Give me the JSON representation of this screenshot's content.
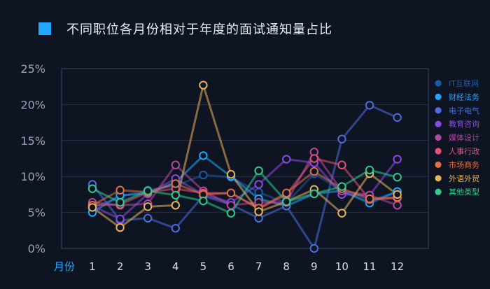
{
  "title": "不同职位各月份相对于年度的面试通知量占比",
  "colors": {
    "title_marker": "#1ea7ff",
    "background": "#0e1422",
    "grid": "#26304a",
    "axis": "#3a4560"
  },
  "chart_data": {
    "type": "line",
    "title": "不同职位各月份相对于年度的面试通知量占比",
    "xlabel": "月份",
    "ylabel": "",
    "categories": [
      "1",
      "2",
      "3",
      "4",
      "5",
      "6",
      "7",
      "8",
      "9",
      "10",
      "11",
      "12"
    ],
    "y_ticks": [
      "0%",
      "5%",
      "10%",
      "15%",
      "20%",
      "25%"
    ],
    "ylim": [
      0,
      25
    ],
    "grid": true,
    "legend_position": "right",
    "series": [
      {
        "name": "IT互联网",
        "color": "#1c5aa0",
        "values": [
          5.6,
          7.2,
          8.1,
          8.7,
          10.2,
          9.9,
          7.8,
          6.3,
          10.4,
          8.0,
          6.6,
          7.9
        ]
      },
      {
        "name": "财经法务",
        "color": "#1ea7ff",
        "values": [
          5.0,
          7.4,
          7.6,
          9.2,
          12.9,
          10.0,
          6.9,
          5.9,
          7.6,
          8.0,
          6.3,
          7.9
        ]
      },
      {
        "name": "电子电气",
        "color": "#4a6ee0",
        "values": [
          8.9,
          3.9,
          4.2,
          2.8,
          7.3,
          6.1,
          4.2,
          5.9,
          0.0,
          15.2,
          19.9,
          18.2
        ]
      },
      {
        "name": "教育咨询",
        "color": "#8a48e6",
        "values": [
          5.9,
          4.1,
          7.6,
          9.7,
          7.5,
          6.4,
          8.9,
          12.4,
          11.9,
          7.5,
          7.4,
          12.4
        ]
      },
      {
        "name": "媒体设计",
        "color": "#b04ba0",
        "values": [
          6.4,
          6.0,
          6.2,
          11.6,
          8.0,
          6.0,
          6.4,
          6.4,
          13.4,
          8.0,
          7.4,
          6.0
        ]
      },
      {
        "name": "人事行政",
        "color": "#e5507a",
        "values": [
          6.0,
          6.1,
          7.8,
          8.3,
          7.7,
          7.7,
          5.5,
          7.5,
          12.5,
          11.6,
          6.8,
          7.0
        ]
      },
      {
        "name": "市场商务",
        "color": "#e07045",
        "values": [
          6.0,
          8.1,
          7.8,
          9.0,
          7.5,
          7.7,
          5.6,
          7.7,
          10.7,
          8.3,
          6.9,
          7.1
        ]
      },
      {
        "name": "外语外贸",
        "color": "#e8b25a",
        "values": [
          5.7,
          2.9,
          5.8,
          6.0,
          22.7,
          10.3,
          5.1,
          6.5,
          8.2,
          4.9,
          10.4,
          7.5
        ]
      },
      {
        "name": "其他类型",
        "color": "#2ecc8e",
        "values": [
          8.3,
          6.4,
          8.0,
          7.4,
          6.6,
          4.9,
          10.8,
          6.5,
          7.6,
          8.6,
          10.9,
          9.9
        ]
      }
    ]
  }
}
